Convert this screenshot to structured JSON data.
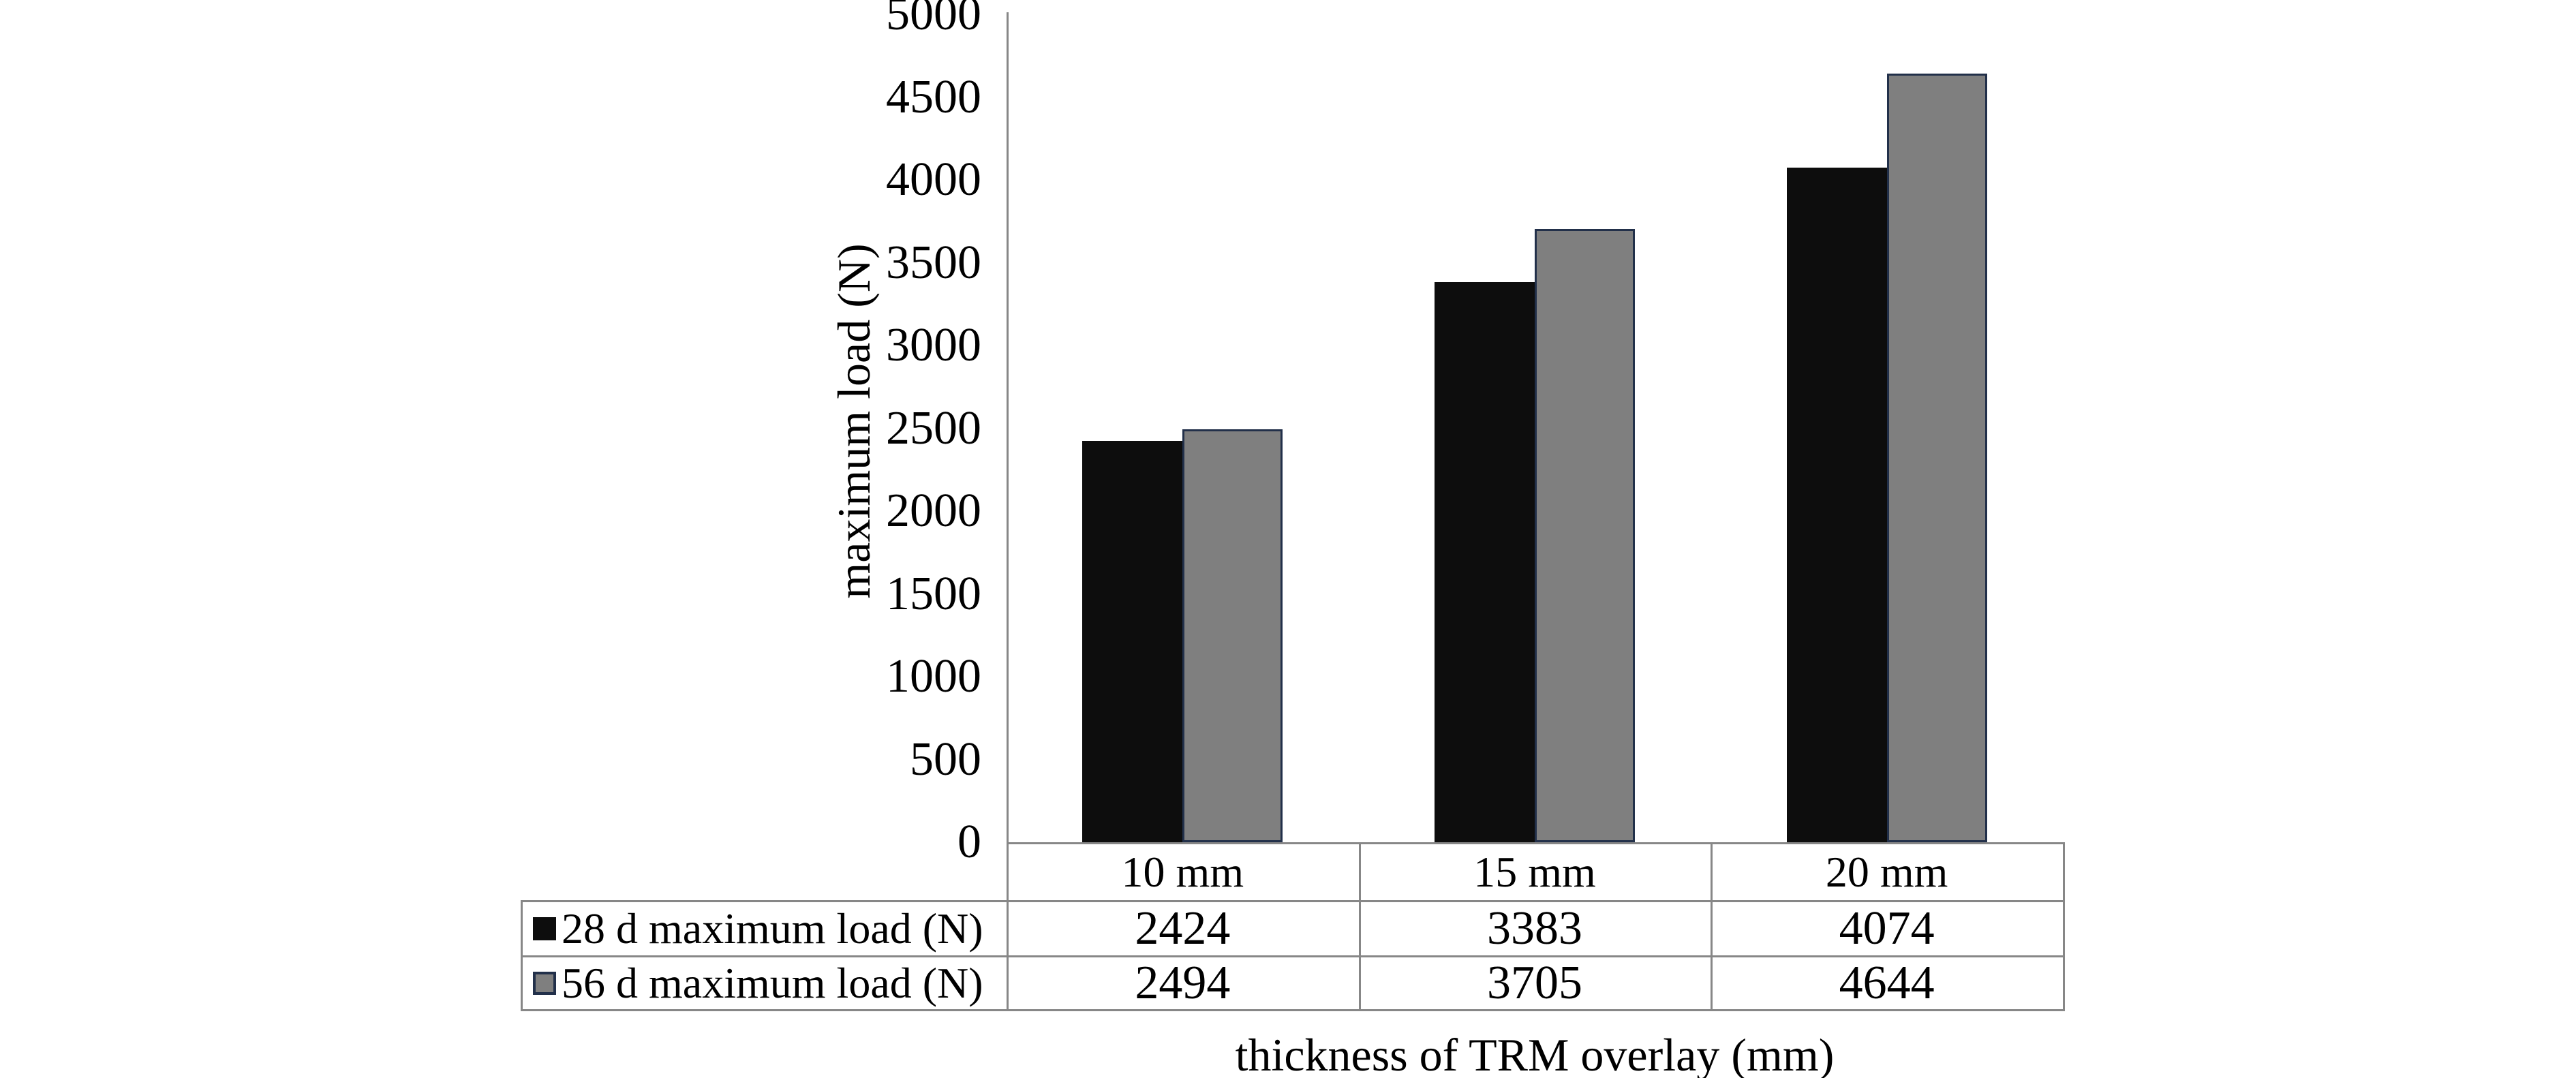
{
  "chart_data": {
    "type": "bar",
    "title": "",
    "categories": [
      "10 mm",
      "15 mm",
      "20 mm"
    ],
    "series": [
      {
        "name": "28 d maximum load (N)",
        "values": [
          2424,
          3383,
          4074
        ],
        "fill": "#0d0d0d",
        "border": null
      },
      {
        "name": "56 d maximum load (N)",
        "values": [
          2494,
          3705,
          4644
        ],
        "fill": "#7f7f7f",
        "border": "#22304a"
      }
    ],
    "xlabel": "thickness of TRM overlay (mm)",
    "ylabel": "maximum load (N)",
    "ylim": [
      0,
      5000
    ],
    "ytick_step": 500,
    "ytick_labels": [
      "0",
      "500",
      "1000",
      "1500",
      "2000",
      "2500",
      "3000",
      "3500",
      "4000",
      "4500",
      "5000"
    ],
    "grid": false,
    "legend_position": "data-table-left",
    "data_table": true
  },
  "colors": {
    "background": "#ffffff",
    "text": "#000000",
    "axis_line": "#878787",
    "table_border": "#878787",
    "series_black": "#0d0d0d",
    "series_gray": "#7f7f7f",
    "series_gray_border": "#22304a"
  }
}
